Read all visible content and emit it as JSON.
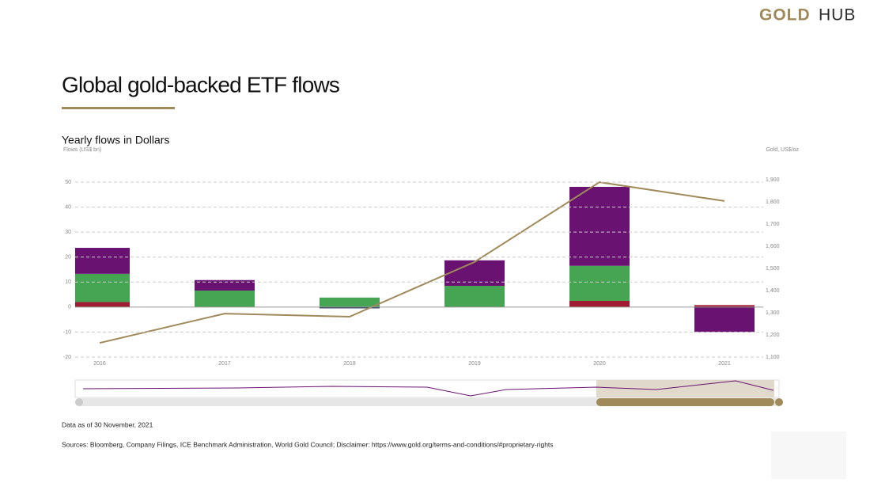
{
  "logo": {
    "gold": "GOLD",
    "hub": "HUB"
  },
  "title": "Global gold-backed ETF flows",
  "chart_data": {
    "type": "bar",
    "stacked": true,
    "title": "Yearly flows in Dollars",
    "y_label": "Flows (US$ bn)",
    "y2_label": "Gold, US$/oz",
    "categories": [
      "2016",
      "2017",
      "2018",
      "2019",
      "2020",
      "2021"
    ],
    "series": [
      {
        "color": "#a01b33",
        "values": [
          2,
          0,
          0,
          0,
          2.5,
          0.8
        ]
      },
      {
        "color": "#1c2a5a",
        "values": [
          0,
          0,
          -0.5,
          0,
          0,
          0
        ]
      },
      {
        "color": "#45a552",
        "values": [
          11.3,
          6.6,
          3.8,
          8.5,
          14,
          0
        ]
      },
      {
        "color": "#6a1272",
        "values": [
          10.4,
          4.2,
          0,
          10.2,
          31.6,
          -10
        ]
      },
      {
        "type": "line",
        "axis": "y2",
        "color": "#a08a5a",
        "values": [
          1164,
          1296,
          1282,
          1529,
          1889,
          1804
        ]
      }
    ],
    "ylim": [
      -20,
      50
    ],
    "yticks": [
      -20,
      -10,
      0,
      10,
      20,
      30,
      40,
      50
    ],
    "y2lim": [
      1100,
      1900
    ],
    "y2ticks": [
      {
        "value": 1100,
        "label": "1,100"
      },
      {
        "value": 1200,
        "label": "1,200"
      },
      {
        "value": 1300,
        "label": "1,300"
      },
      {
        "value": 1400,
        "label": "1,400"
      },
      {
        "value": 1500,
        "label": "1,500"
      },
      {
        "value": 1600,
        "label": "1,600"
      },
      {
        "value": 1700,
        "label": "1,700"
      },
      {
        "value": 1800,
        "label": "1,800"
      },
      {
        "value": 1900,
        "label": "1,900"
      }
    ],
    "grid": true
  },
  "notes": {
    "date": "Data as of 30 November, 2021",
    "sources": "Sources: Bloomberg, Company Filings, ICE Benchmark Administration, World Gold Council; Disclaimer: https://www.gold.org/terms-and-conditions/#proprietary-rights"
  }
}
